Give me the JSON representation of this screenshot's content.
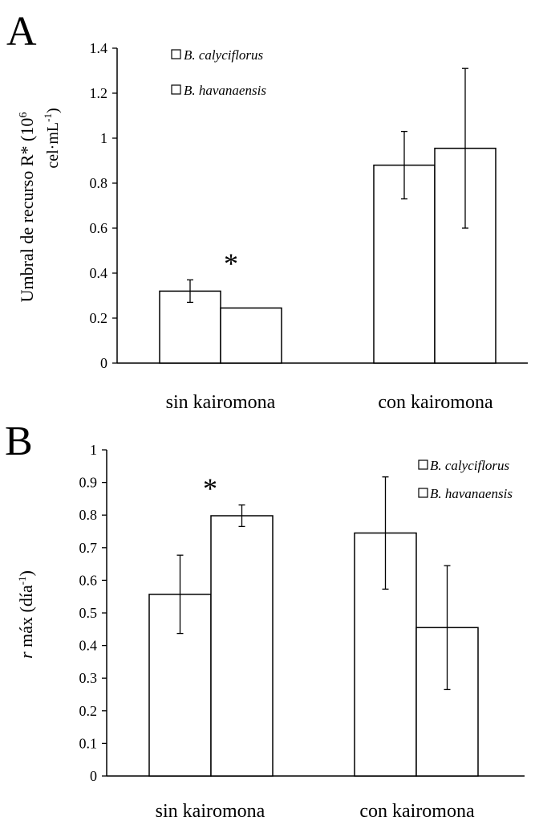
{
  "chart_data": [
    {
      "panel_label": "A",
      "type": "bar",
      "categories": [
        "sin kairomona",
        "con kairomona"
      ],
      "series": [
        {
          "name": "B. calyciflorus",
          "values": [
            0.32,
            0.88
          ],
          "error": [
            0.05,
            0.15
          ]
        },
        {
          "name": "B. havanaensis",
          "values": [
            0.245,
            0.955
          ],
          "error": [
            0,
            0.355
          ]
        }
      ],
      "ylim": [
        0,
        1.4
      ],
      "yticks": [
        "0",
        "0.2",
        "0.4",
        "0.6",
        "0.8",
        "1",
        "1.2",
        "1.4"
      ],
      "ylabel_line1": "Umbral de recurso R* (10",
      "ylabel_sup1": "6",
      "ylabel_line2": "cel·mL",
      "ylabel_sup2": "-1",
      "ylabel_close": ")",
      "annotation": "*",
      "legend_position": "top-left"
    },
    {
      "panel_label": "B",
      "type": "bar",
      "categories": [
        "sin kairomona",
        "con kairomona"
      ],
      "series": [
        {
          "name": "B. calyciflorus",
          "values": [
            0.557,
            0.745
          ],
          "error": [
            0.12,
            0.172
          ]
        },
        {
          "name": "B. havanaensis",
          "values": [
            0.798,
            0.455
          ],
          "error": [
            0.033,
            0.19
          ]
        }
      ],
      "ylim": [
        0,
        1
      ],
      "yticks": [
        "0",
        "0.1",
        "0.2",
        "0.3",
        "0.4",
        "0.5",
        "0.6",
        "0.7",
        "0.8",
        "0.9",
        "1"
      ],
      "ylabel_r": "r",
      "ylabel_rest": " máx  (día",
      "ylabel_sup": "-1",
      "ylabel_close": ")",
      "annotation": "*",
      "legend_position": "top-right"
    }
  ]
}
